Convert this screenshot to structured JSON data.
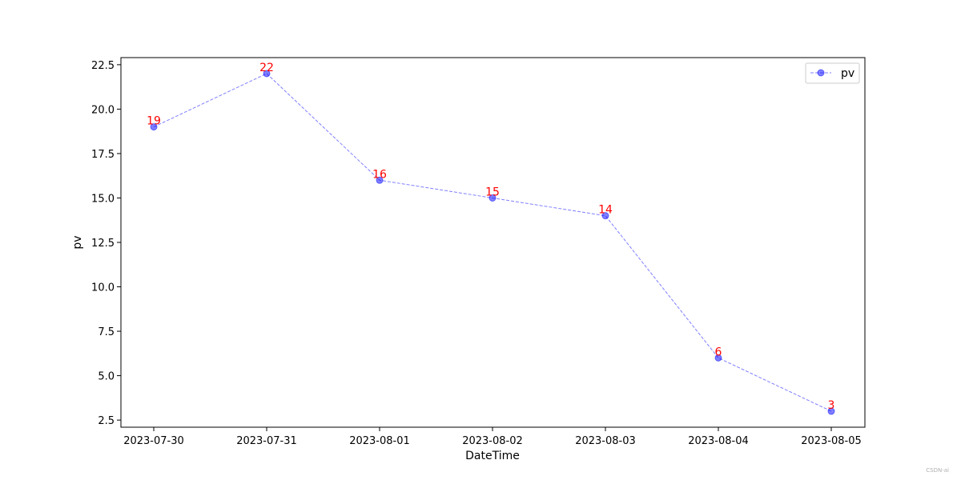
{
  "chart_data": {
    "type": "line",
    "title": "",
    "xlabel": "DateTime",
    "ylabel": "pv",
    "categories": [
      "2023-07-30",
      "2023-07-31",
      "2023-08-01",
      "2023-08-02",
      "2023-08-03",
      "2023-08-04",
      "2023-08-05"
    ],
    "series": [
      {
        "name": "pv",
        "values": [
          19,
          22,
          16,
          15,
          14,
          6,
          3
        ],
        "data_labels": [
          "19",
          "22",
          "16",
          "15",
          "14",
          "6",
          "3"
        ],
        "color": "#0000ff",
        "label_color": "#ff0000",
        "line_style": "dashed",
        "marker": "circle"
      }
    ],
    "ylim": [
      2.1,
      22.9
    ],
    "yticks": [
      2.5,
      5.0,
      7.5,
      10.0,
      12.5,
      15.0,
      17.5,
      20.0,
      22.5
    ],
    "ytick_labels": [
      "2.5",
      "5.0",
      "7.5",
      "10.0",
      "12.5",
      "15.0",
      "17.5",
      "20.0",
      "22.5"
    ],
    "grid": false,
    "legend_position": "top-right"
  },
  "watermark": "CSDN-ai"
}
